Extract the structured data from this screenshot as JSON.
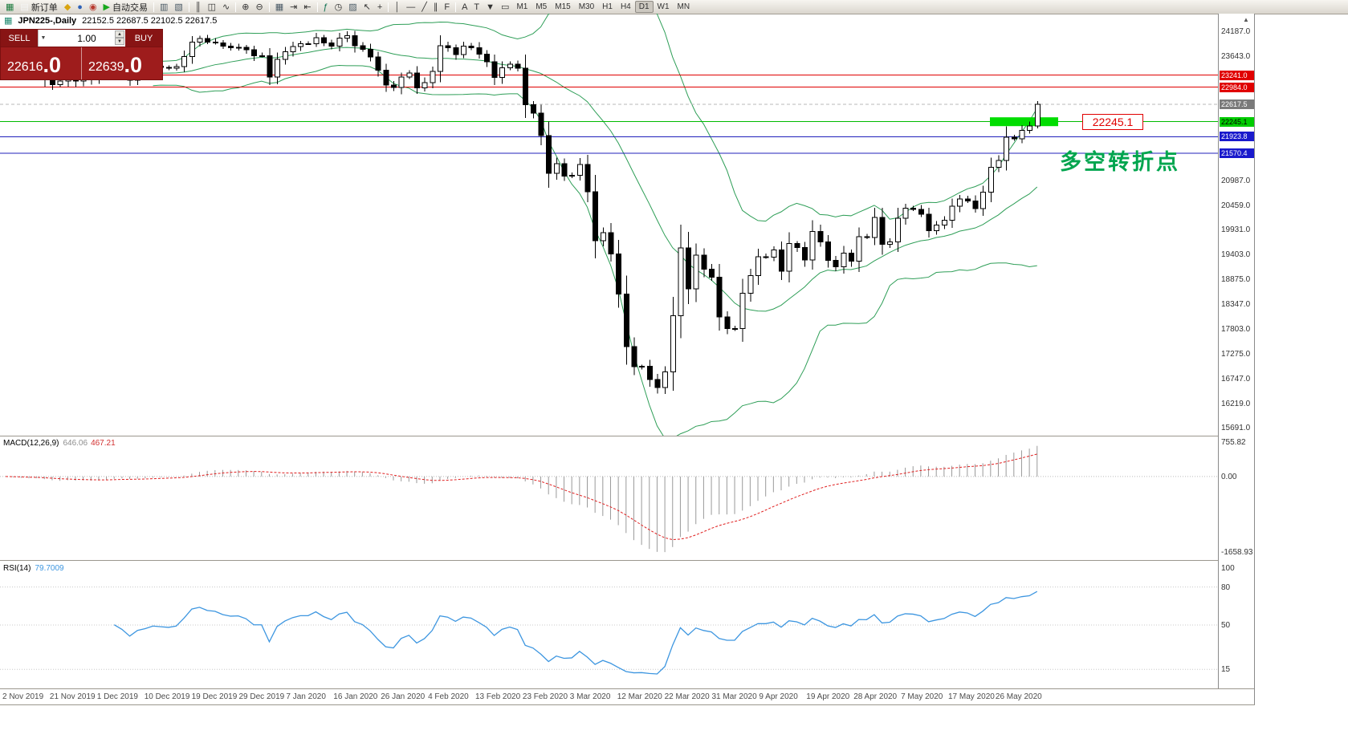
{
  "toolbar": {
    "items": [
      {
        "name": "terminal-icon",
        "glyph": "▦",
        "color": "#1b7a3d"
      },
      {
        "name": "new-order-button",
        "label": "新订单",
        "glyph": "▤",
        "color": "#f5f5f5"
      },
      {
        "name": "gold-icon",
        "glyph": "◆",
        "color": "#d9a40f"
      },
      {
        "name": "accounts-icon",
        "glyph": "●",
        "color": "#2e62b8"
      },
      {
        "name": "refresh-icon",
        "glyph": "◉",
        "color": "#b83a2e"
      },
      {
        "name": "auto-trading-button",
        "label": "自动交易",
        "glyph": "▶",
        "color": "#18a81c"
      },
      {
        "sep": true
      },
      {
        "name": "new-chart-icon",
        "glyph": "▥",
        "color": "#4a5a66"
      },
      {
        "name": "profiles-icon",
        "glyph": "▧",
        "color": "#4a5a66"
      },
      {
        "sep": true
      },
      {
        "name": "bar-chart-icon",
        "glyph": "║",
        "color": "#333333"
      },
      {
        "name": "candlestick-chart-icon",
        "glyph": "◫",
        "color": "#333333"
      },
      {
        "name": "line-chart-icon",
        "glyph": "∿",
        "color": "#333333"
      },
      {
        "sep": true
      },
      {
        "name": "zoom-in-icon",
        "glyph": "⊕",
        "color": "#333333"
      },
      {
        "name": "zoom-out-icon",
        "glyph": "⊖",
        "color": "#333333"
      },
      {
        "sep": true
      },
      {
        "name": "tile-windows-icon",
        "glyph": "▦",
        "color": "#4a5a66"
      },
      {
        "name": "auto-scroll-icon",
        "glyph": "⇥",
        "color": "#333333"
      },
      {
        "name": "chart-shift-icon",
        "glyph": "⇤",
        "color": "#333333"
      },
      {
        "sep": true
      },
      {
        "name": "indicators-icon",
        "glyph": "ƒ",
        "color": "#0b6e4f"
      },
      {
        "name": "periods-icon",
        "glyph": "◷",
        "color": "#333333"
      },
      {
        "name": "templates-icon",
        "glyph": "▨",
        "color": "#4a5a66"
      },
      {
        "spacer": true
      },
      {
        "name": "cursor-icon",
        "glyph": "↖",
        "color": "#333333"
      },
      {
        "name": "crosshair-icon",
        "glyph": "+",
        "color": "#333333"
      },
      {
        "sep": true
      },
      {
        "name": "vertical-line-icon",
        "glyph": "│",
        "color": "#333333"
      },
      {
        "name": "horizontal-line-icon",
        "glyph": "―",
        "color": "#333333"
      },
      {
        "name": "trendline-icon",
        "glyph": "╱",
        "color": "#333333"
      },
      {
        "name": "channel-icon",
        "glyph": "∥",
        "color": "#333333"
      },
      {
        "name": "fibonacci-icon",
        "glyph": "F",
        "color": "#333333"
      },
      {
        "sep": true
      },
      {
        "name": "text-icon",
        "glyph": "A",
        "color": "#333333"
      },
      {
        "name": "label-icon",
        "glyph": "T",
        "color": "#333333"
      },
      {
        "name": "arrows-icon",
        "glyph": "▼",
        "color": "#333333"
      },
      {
        "name": "shapes-icon",
        "glyph": "▭",
        "color": "#333333"
      },
      {
        "spacer": true
      }
    ],
    "timeframes": [
      {
        "label": "M1"
      },
      {
        "label": "M5"
      },
      {
        "label": "M15"
      },
      {
        "label": "M30"
      },
      {
        "label": "H1"
      },
      {
        "label": "H4"
      },
      {
        "label": "D1",
        "active": true
      },
      {
        "label": "W1"
      },
      {
        "label": "MN"
      }
    ]
  },
  "title": {
    "symbol": "JPN225-,Daily",
    "ohlc": "22152.5 22687.5 22102.5 22617.5"
  },
  "trade": {
    "sell_label": "SELL",
    "buy_label": "BUY",
    "volume": "1.00",
    "sell_main": "22616",
    "sell_frac": ".0",
    "buy_main": "22639",
    "buy_frac": ".0",
    "stepper_up": "▲",
    "stepper_down": "▼",
    "dropdown_glyph": "▼"
  },
  "annotations": {
    "price_flag": "22245.1",
    "turning_point": "多空转折点"
  },
  "macd": {
    "label_name": "MACD(12,26,9)",
    "value1": "646.06",
    "value2": "467.21",
    "range": [
      -1830,
      860
    ],
    "scale": [
      {
        "text": "755.82",
        "value": 755.82
      },
      {
        "text": "0.00",
        "value": 0
      },
      {
        "text": "-1658.93",
        "value": -1658.93
      }
    ]
  },
  "rsi": {
    "label_name": "RSI(14)",
    "value": "79.7009",
    "range": [
      0,
      100
    ],
    "level_lines": [
      80,
      50,
      15
    ],
    "scale": [
      {
        "text": "100",
        "value": 100
      },
      {
        "text": "80",
        "value": 80
      },
      {
        "text": "50",
        "value": 50
      },
      {
        "text": "15",
        "value": 15
      }
    ]
  },
  "price_axis": {
    "labels": [
      {
        "text": "24187.0",
        "value": 24187
      },
      {
        "text": "23643.0",
        "value": 23643
      },
      {
        "text": "20987.0",
        "value": 20987
      },
      {
        "text": "20459.0",
        "value": 20459
      },
      {
        "text": "19931.0",
        "value": 19931
      },
      {
        "text": "19403.0",
        "value": 19403
      },
      {
        "text": "18875.0",
        "value": 18875
      },
      {
        "text": "18347.0",
        "value": 18347
      },
      {
        "text": "17803.0",
        "value": 17803
      },
      {
        "text": "17275.0",
        "value": 17275
      },
      {
        "text": "16747.0",
        "value": 16747
      },
      {
        "text": "16219.0",
        "value": 16219
      },
      {
        "text": "15691.0",
        "value": 15691
      }
    ],
    "tags": [
      {
        "text": "23241.0",
        "value": 23241.0,
        "bg": "#e00000",
        "fg": "#ffffff"
      },
      {
        "text": "22984.0",
        "value": 22984.0,
        "bg": "#e00000",
        "fg": "#ffffff"
      },
      {
        "text": "22617.5",
        "value": 22617.5,
        "bg": "#7a7a7a",
        "fg": "#ffffff"
      },
      {
        "text": "22245.1",
        "value": 22245.1,
        "bg": "#00cc00",
        "fg": "#000000"
      },
      {
        "text": "21923.8",
        "value": 21923.8,
        "bg": "#1a1acc",
        "fg": "#ffffff"
      },
      {
        "text": "21570.4",
        "value": 21570.4,
        "bg": "#1a1acc",
        "fg": "#ffffff"
      }
    ]
  },
  "chart_data": {
    "type": "candlestick",
    "symbol": "JPN225-",
    "timeframe": "Daily",
    "y_range": [
      15526,
      24558
    ],
    "last_ohlc": {
      "open": 22152.5,
      "high": 22687.5,
      "low": 22102.5,
      "close": 22617.5
    },
    "closes": [
      23520,
      23320,
      23330,
      23303,
      23416,
      23148,
      23038,
      23113,
      23380,
      23112,
      23293,
      23148,
      23210,
      23294,
      23529,
      23380,
      23135,
      23300,
      23354,
      23430,
      23410,
      23392,
      23424,
      23639,
      23952,
      24023,
      23952,
      23934,
      23864,
      23830,
      23837,
      23782,
      23657,
      23656,
      23205,
      23576,
      23740,
      23851,
      23916,
      23917,
      24041,
      23934,
      23864,
      24031,
      24084,
      23869,
      23796,
      23627,
      23344,
      23031,
      22977,
      23205,
      23285,
      22972,
      23085,
      23320,
      23874,
      23828,
      23686,
      23861,
      23828,
      23687,
      23524,
      23194,
      23401,
      23479,
      23387,
      22605,
      22426,
      21948,
      21143,
      21344,
      21083,
      21100,
      21329,
      20750,
      19699,
      19867,
      19416,
      18560,
      17431,
      17002,
      17011,
      16727,
      16553,
      16888,
      18092,
      19547,
      18665,
      19389,
      19085,
      18917,
      18065,
      17818,
      17820,
      18576,
      18950,
      19353,
      19346,
      19499,
      19043,
      19639,
      19550,
      19290,
      19897,
      19669,
      19281,
      19138,
      19429,
      19262,
      19783,
      19771,
      20194,
      19619,
      19675,
      20179,
      20391,
      20366,
      20267,
      19915,
      20037,
      20134,
      20433,
      20595,
      20552,
      20388,
      20741,
      21271,
      21419,
      21916,
      21878,
      22062,
      22152.5,
      22617.5
    ],
    "bollinger": {
      "period": 20,
      "deviation": 2,
      "color": "#2e9e57"
    },
    "hlines": [
      {
        "value": 23241.0,
        "color": "#e00000"
      },
      {
        "value": 22984.0,
        "color": "#e00000"
      },
      {
        "value": 22245.1,
        "color": "#00bb00"
      },
      {
        "value": 21923.8,
        "color": "#2020bb"
      },
      {
        "value": 21570.4,
        "color": "#2020bb"
      }
    ],
    "bid": 22617.5,
    "highlight": {
      "value": 22245.1,
      "x": 1233,
      "width": 85,
      "height": 11,
      "color": "#00dd00"
    },
    "x_labels": [
      "2 Nov 2019",
      "21 Nov 2019",
      "1 Dec 2019",
      "10 Dec 2019",
      "19 Dec 2019",
      "29 Dec 2019",
      "7 Jan 2020",
      "16 Jan 2020",
      "26 Jan 2020",
      "4 Feb 2020",
      "13 Feb 2020",
      "23 Feb 2020",
      "3 Mar 2020",
      "12 Mar 2020",
      "22 Mar 2020",
      "31 Mar 2020",
      "9 Apr 2020",
      "19 Apr 2020",
      "28 Apr 2020",
      "7 May 2020",
      "17 May 2020",
      "26 May 2020"
    ]
  }
}
